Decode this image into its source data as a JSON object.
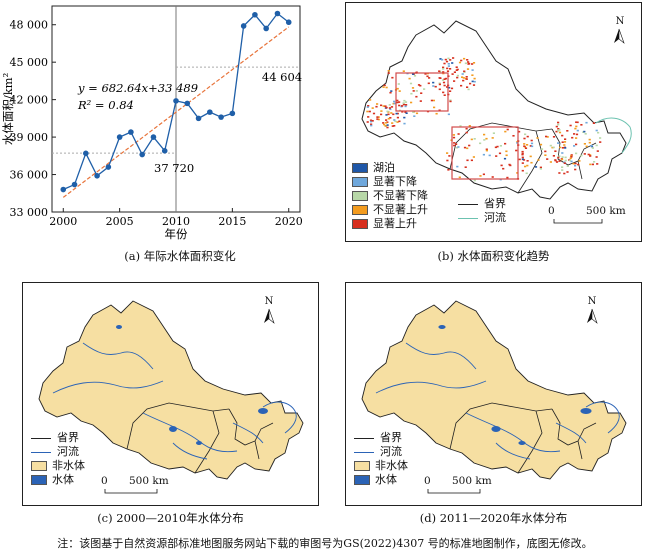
{
  "panel_a": {
    "caption": "(a) 年际水体面积变化",
    "ylabel": "水体面积/km²",
    "xlabel": "年份",
    "equation": "y = 682.64x+33 489",
    "r2": "R² = 0.84",
    "label_left": "37 720",
    "label_right": "44 604"
  },
  "chart_data": {
    "type": "line",
    "x": [
      2000,
      2001,
      2002,
      2003,
      2004,
      2005,
      2006,
      2007,
      2008,
      2009,
      2010,
      2011,
      2012,
      2013,
      2014,
      2015,
      2016,
      2017,
      2018,
      2019,
      2020
    ],
    "y": [
      34800,
      35200,
      37700,
      35900,
      36600,
      39000,
      39400,
      37600,
      39000,
      37900,
      41900,
      41700,
      40500,
      41000,
      40600,
      40900,
      47900,
      48800,
      47700,
      48900,
      48200
    ],
    "xlim": [
      1999,
      2021
    ],
    "ylim": [
      33000,
      49500
    ],
    "xticks": [
      2000,
      2005,
      2010,
      2015,
      2020
    ],
    "yticks": [
      33000,
      36000,
      39000,
      42000,
      45000,
      48000
    ],
    "ytick_labels": [
      "33 000",
      "36 000",
      "39 000",
      "42 000",
      "45 000",
      "48 000"
    ],
    "trend": {
      "slope": 682.64,
      "intercept": 33489
    },
    "mean_left": 37720,
    "mean_right": 44604,
    "split_year": 2010,
    "colors": {
      "line": "#1f5fa8",
      "trend": "#e8743b",
      "mean": "#aaaaaa"
    }
  },
  "panel_b": {
    "caption": "(b) 水体面积变化趋势",
    "legend": [
      {
        "label": "湖泊",
        "color": "#1f57a8"
      },
      {
        "label": "显著下降",
        "color": "#6fa8dc"
      },
      {
        "label": "不显著下降",
        "color": "#b8d8a8"
      },
      {
        "label": "不显著上升",
        "color": "#f39c20"
      },
      {
        "label": "显著上升",
        "color": "#d7301f"
      }
    ],
    "boundary_label": "省界",
    "river_label": "河流",
    "north": "N",
    "scale_zero": "0",
    "scale_label": "500 km"
  },
  "panel_c": {
    "caption": "(c) 2000—2010年水体分布",
    "boundary_label": "省界",
    "river_label": "河流",
    "nonwater_label": "非水体",
    "water_label": "水体",
    "north": "N",
    "scale_zero": "0",
    "scale_label": "500 km"
  },
  "panel_d": {
    "caption": "(d) 2011—2020年水体分布",
    "boundary_label": "省界",
    "river_label": "河流",
    "nonwater_label": "非水体",
    "water_label": "水体",
    "north": "N",
    "scale_zero": "0",
    "scale_label": "500 km"
  },
  "colors": {
    "land": "#f6dfa2",
    "water": "#2b63b6",
    "boundary": "#222222",
    "river": "#2b63b6"
  },
  "note": "注：该图基于自然资源部标准地图服务网站下载的审图号为GS(2022)4307 号的标准地图制作，底图无修改。"
}
